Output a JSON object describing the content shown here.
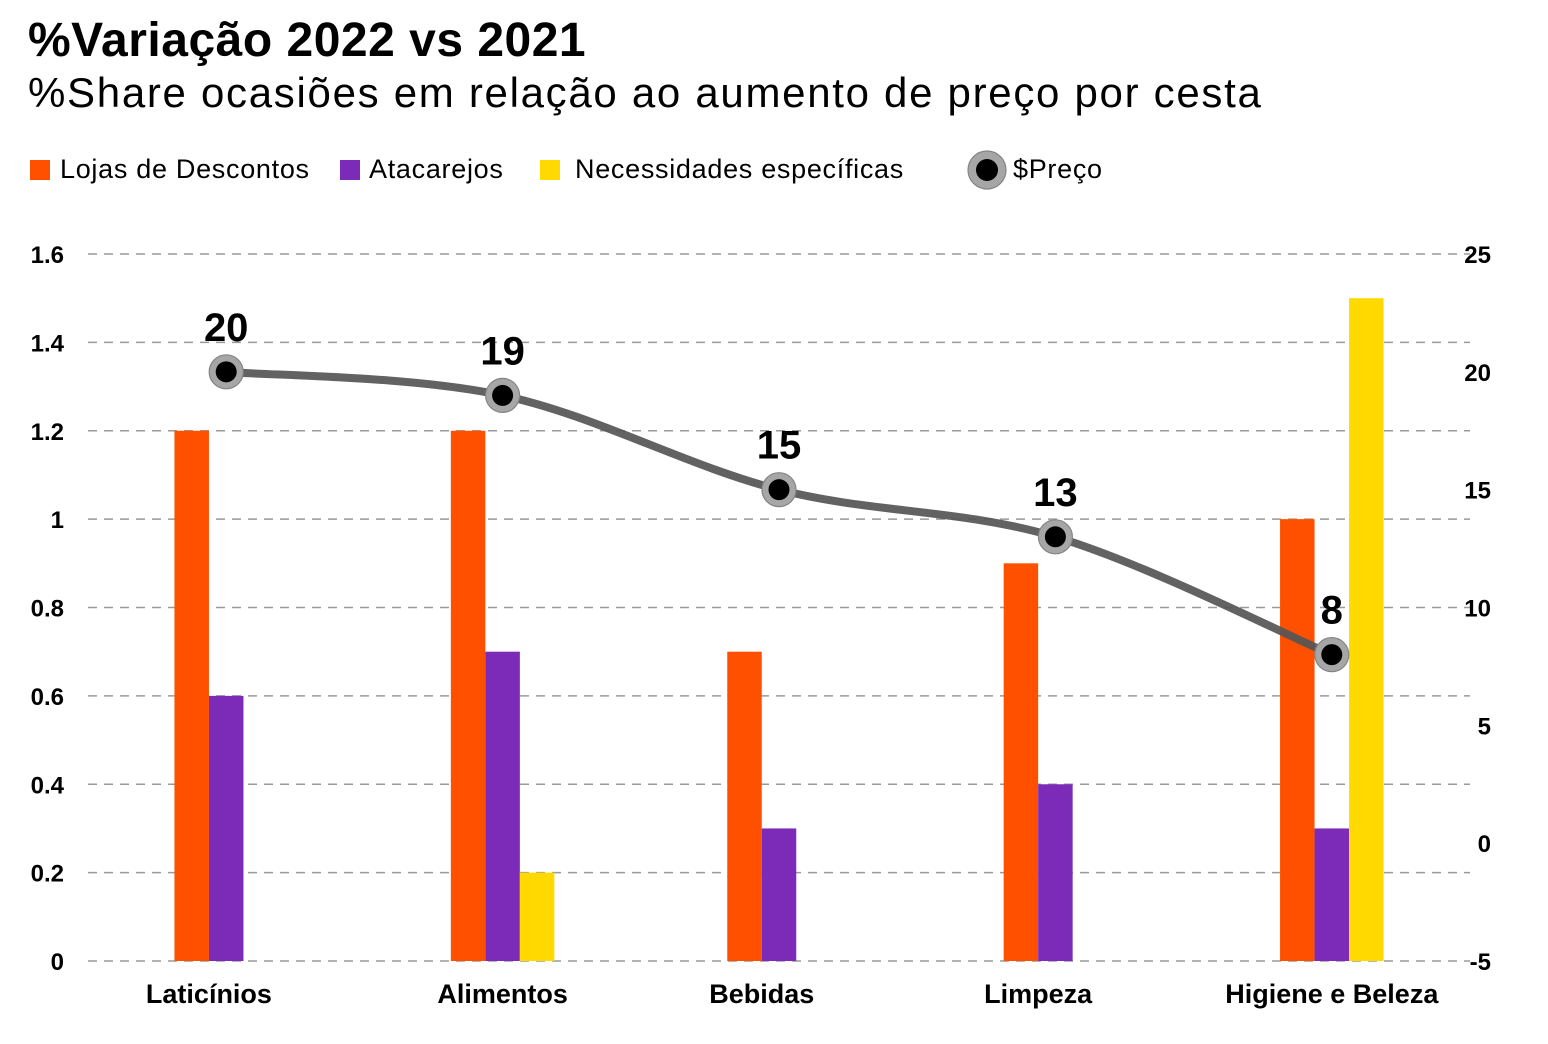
{
  "chart_data": {
    "type": "bar",
    "title": "%Variação 2022 vs 2021",
    "subtitle": "%Share ocasiões em relação ao aumento de preço por cesta",
    "categories": [
      "Laticínios",
      "Alimentos",
      "Bebidas",
      "Limpeza",
      "Higiene e Beleza"
    ],
    "series": [
      {
        "name": "Lojas de Descontos",
        "type": "bar",
        "axis": "left",
        "color": "#FF5000",
        "values": [
          1.2,
          1.2,
          0.7,
          0.9,
          1.0
        ]
      },
      {
        "name": "Atacarejos",
        "type": "bar",
        "axis": "left",
        "color": "#7B2BB8",
        "values": [
          0.6,
          0.7,
          0.3,
          0.4,
          0.3
        ]
      },
      {
        "name": "Necessidades específicas",
        "type": "bar",
        "axis": "left",
        "color": "#FFD900",
        "values": [
          null,
          0.2,
          null,
          null,
          1.5
        ]
      },
      {
        "name": "$Preço",
        "type": "line",
        "axis": "right",
        "smooth": true,
        "color": "#555555",
        "marker_color": "#000000",
        "marker_ring_color": "#A6A6A6",
        "data_labels": true,
        "values": [
          20,
          19,
          15,
          13,
          8
        ]
      }
    ],
    "y_left": {
      "range": [
        0,
        1.6
      ],
      "ticks": [
        0,
        0.2,
        0.4,
        0.6,
        0.8,
        1,
        1.2,
        1.4,
        1.6
      ],
      "tick_labels": [
        "0",
        "0.2",
        "0.4",
        "0.6",
        "0.8",
        "1",
        "1.2",
        "1.4",
        "1.6"
      ]
    },
    "y_right": {
      "range": [
        -5,
        25
      ],
      "ticks": [
        -5,
        0,
        5,
        10,
        15,
        20,
        25
      ],
      "tick_labels": [
        "-5",
        "0",
        "5",
        "10",
        "15",
        "20",
        "25"
      ]
    },
    "grid": true,
    "grid_style": "dashed",
    "legend": "top-left"
  }
}
